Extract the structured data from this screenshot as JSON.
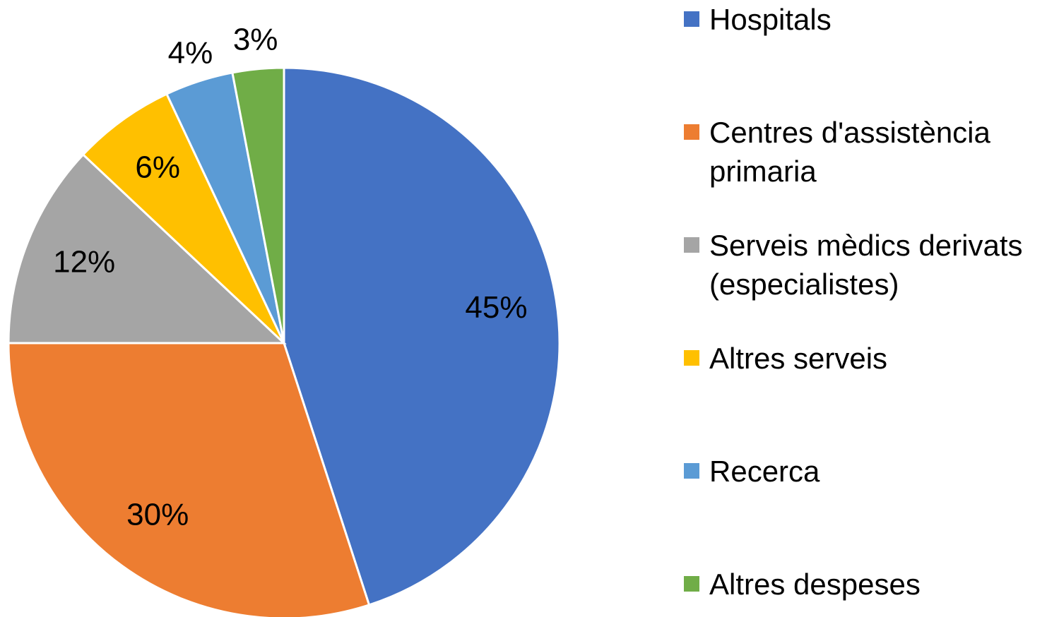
{
  "chart_data": {
    "type": "pie",
    "categories": [
      "Hospitals",
      "Centres d'assistència primaria",
      "Serveis mèdics derivats (especialistes)",
      "Altres serveis",
      "Recerca",
      "Altres despeses"
    ],
    "values": [
      45,
      30,
      12,
      6,
      4,
      3
    ],
    "value_labels": [
      "45%",
      "30%",
      "12%",
      "6%",
      "4%",
      "3%"
    ],
    "colors": [
      "#4472c4",
      "#ed7d31",
      "#a5a5a5",
      "#ffc000",
      "#5b9bd5",
      "#70ad47"
    ],
    "legend": "right"
  }
}
